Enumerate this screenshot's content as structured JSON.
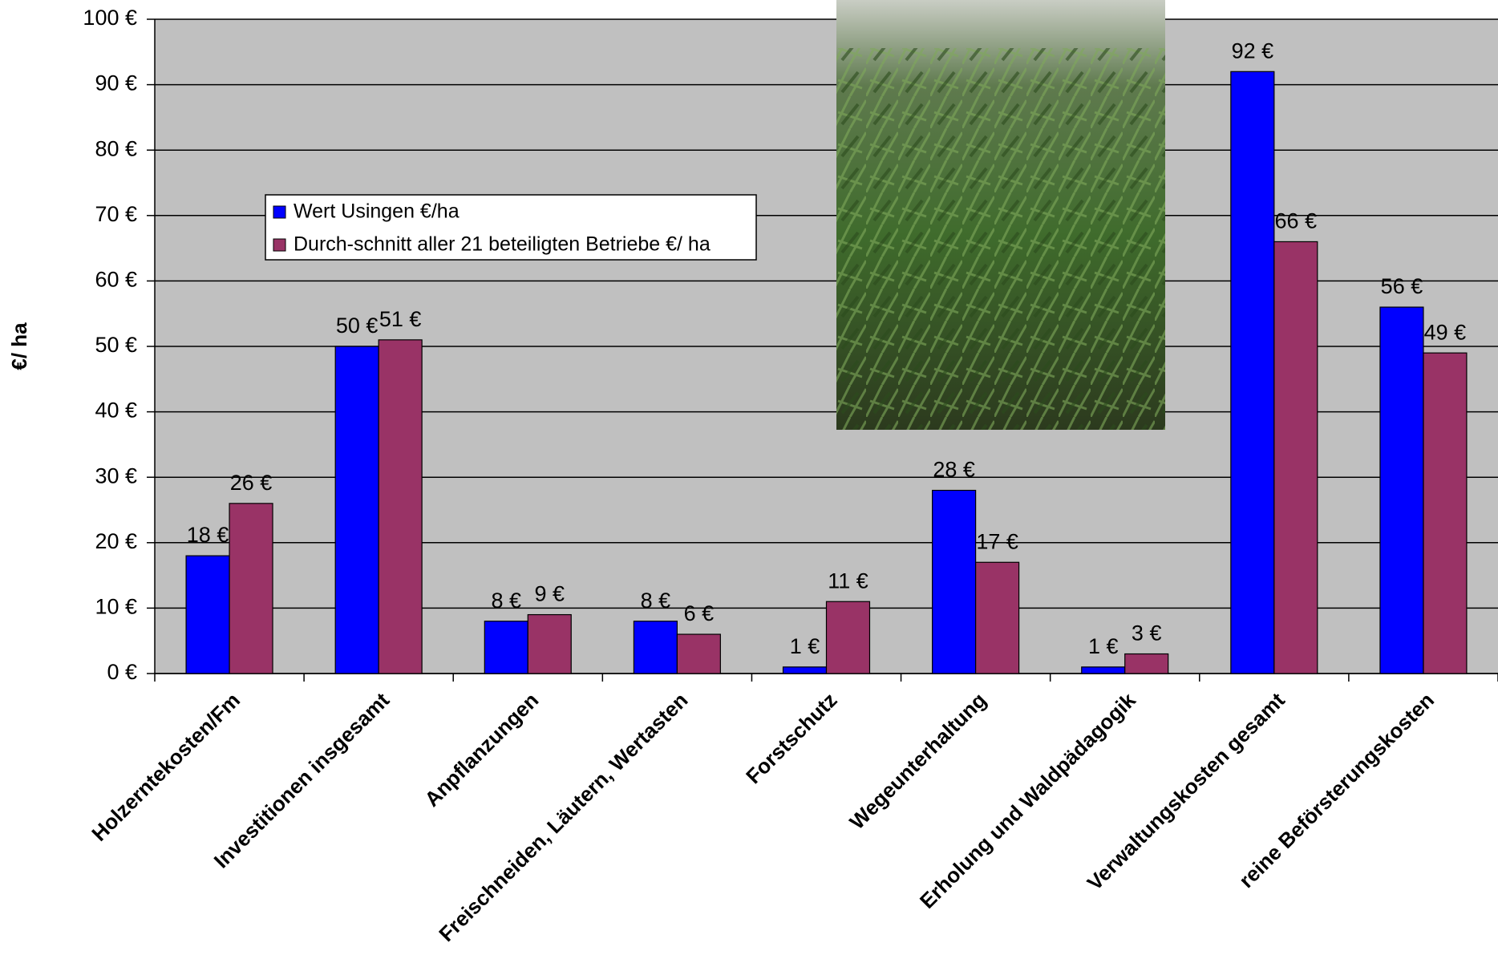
{
  "chart_data": {
    "type": "bar",
    "y_label": "€/ ha",
    "categories": [
      "Holzerntekosten/Fm",
      "Investitionen insgesamt",
      "Anpflanzungen",
      "Freischneiden, Läutern, Wertasten",
      "Forstschutz",
      "Wegeunterhaltung",
      "Erholung und Waldpädagogik",
      "Verwaltungskosten gesamt",
      "reine Beförsterungskosten"
    ],
    "series": [
      {
        "name": "Wert Usingen €/ha",
        "color": "#0000ff",
        "values": [
          18,
          50,
          8,
          8,
          1,
          28,
          1,
          92,
          56
        ],
        "value_labels": [
          "18 €",
          "50 €",
          "8 €",
          "8 €",
          "1 €",
          "28 €",
          "1 €",
          "92 €",
          "56 €"
        ]
      },
      {
        "name": "Durch-schnitt aller 21 beteiligten Betriebe €/ ha",
        "color": "#993366",
        "values": [
          26,
          51,
          9,
          6,
          11,
          17,
          3,
          66,
          49
        ],
        "value_labels": [
          "26 €",
          "51 €",
          "9 €",
          "6 €",
          "11 €",
          "17 €",
          "3 €",
          "66 €",
          "49 €"
        ]
      }
    ],
    "ylim": [
      0,
      100
    ],
    "yticks": [
      {
        "value": 0,
        "label": "0 €"
      },
      {
        "value": 10,
        "label": "10 €"
      },
      {
        "value": 20,
        "label": "20 €"
      },
      {
        "value": 30,
        "label": "30 €"
      },
      {
        "value": 40,
        "label": "40 €"
      },
      {
        "value": 50,
        "label": "50 €"
      },
      {
        "value": 60,
        "label": "60 €"
      },
      {
        "value": 70,
        "label": "70 €"
      },
      {
        "value": 80,
        "label": "80 €"
      },
      {
        "value": 90,
        "label": "90 €"
      },
      {
        "value": 100,
        "label": "100 €"
      }
    ],
    "grid": true
  }
}
